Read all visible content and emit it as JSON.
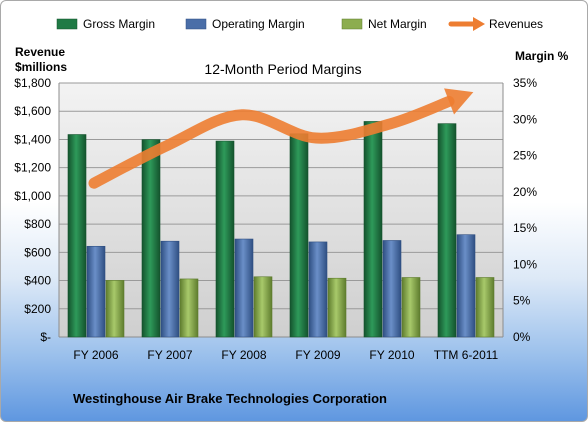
{
  "chart_data": {
    "type": "bar",
    "title": "12-Month Period Margins",
    "company": "Westinghouse Air Brake Technologies Corporation",
    "categories": [
      "FY 2006",
      "FY 2007",
      "FY 2008",
      "FY 2009",
      "FY 2010",
      "TTM 6-2011"
    ],
    "y_left": {
      "label_line1": "Revenue",
      "label_line2": "$millions",
      "range": [
        0,
        1800
      ],
      "ticks": [
        "$-",
        "$200",
        "$400",
        "$600",
        "$800",
        "$1,000",
        "$1,200",
        "$1,400",
        "$1,600",
        "$1,800"
      ]
    },
    "y_right": {
      "label": "Margin %",
      "range": [
        0,
        35
      ],
      "ticks": [
        "0%",
        "5%",
        "10%",
        "15%",
        "20%",
        "25%",
        "30%",
        "35%"
      ]
    },
    "series": [
      {
        "name": "Gross Margin",
        "axis": "right",
        "color": "#1f7a45",
        "values": [
          27.9,
          27.2,
          27.0,
          28.0,
          29.7,
          29.4
        ]
      },
      {
        "name": "Operating Margin",
        "axis": "right",
        "color": "#4a6ea8",
        "values": [
          12.5,
          13.2,
          13.5,
          13.1,
          13.3,
          14.1
        ]
      },
      {
        "name": "Net Margin",
        "axis": "right",
        "color": "#8cad4f",
        "values": [
          7.8,
          8.0,
          8.3,
          8.1,
          8.2,
          8.2
        ]
      },
      {
        "name": "Revenues",
        "axis": "left",
        "color": "#ed7d31",
        "type": "line",
        "values": [
          1090,
          1360,
          1575,
          1410,
          1510,
          1710
        ]
      }
    ],
    "legend_position": "top",
    "grid": true
  }
}
